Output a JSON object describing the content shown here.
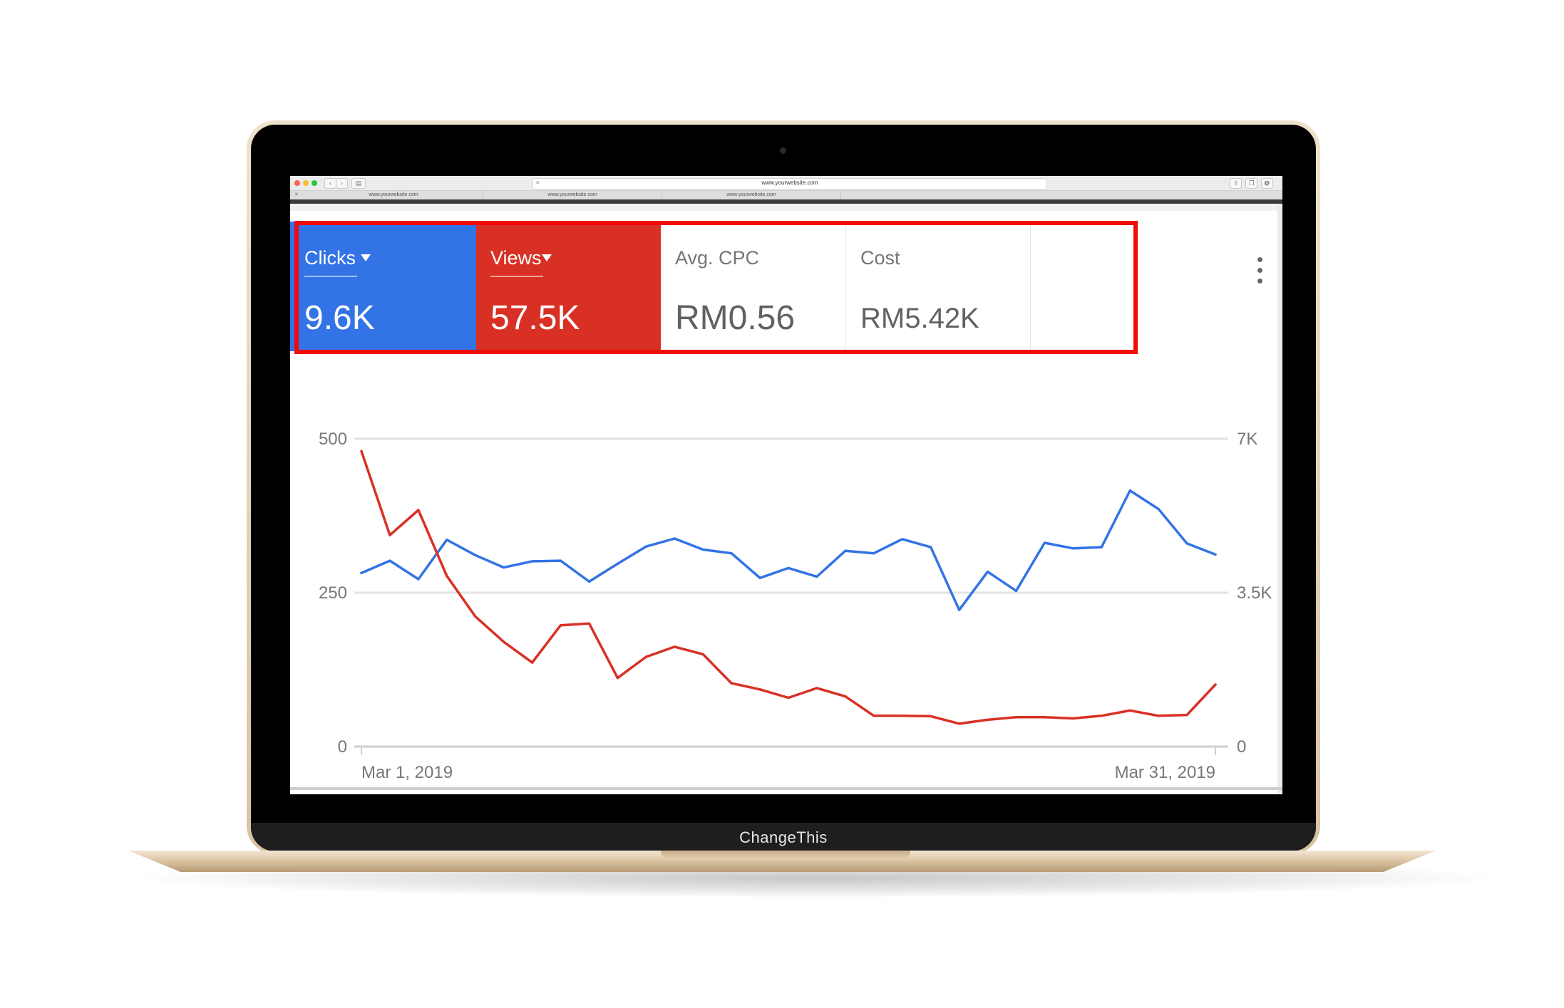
{
  "laptop": {
    "brand_label": "ChangeThis"
  },
  "browser": {
    "url": "www.yourwebsite.com",
    "tabs": [
      "www.yourwebsite.com",
      "www.yourwebsite.com",
      "www.yourwebsite.com"
    ]
  },
  "scorecards": [
    {
      "label": "Clicks",
      "value": "9.6K",
      "active": true,
      "color": "#3273e6"
    },
    {
      "label": "Views",
      "value": "57.5K",
      "active": true,
      "color": "#d93025"
    },
    {
      "label": "Avg. CPC",
      "value": "RM0.56",
      "active": false
    },
    {
      "label": "Cost",
      "value": "RM5.42K",
      "active": false
    }
  ],
  "colors": {
    "clicks": "#3273e6",
    "views": "#d93025",
    "highlight": "#f00a0a"
  },
  "chart_data": {
    "type": "line",
    "x_labels": [
      "Mar 1, 2019",
      "Mar 31, 2019"
    ],
    "x": [
      "Mar 1",
      "Mar 2",
      "Mar 3",
      "Mar 4",
      "Mar 5",
      "Mar 6",
      "Mar 7",
      "Mar 8",
      "Mar 9",
      "Mar 10",
      "Mar 11",
      "Mar 12",
      "Mar 13",
      "Mar 14",
      "Mar 15",
      "Mar 16",
      "Mar 17",
      "Mar 18",
      "Mar 19",
      "Mar 20",
      "Mar 21",
      "Mar 22",
      "Mar 23",
      "Mar 24",
      "Mar 25",
      "Mar 26",
      "Mar 27",
      "Mar 28",
      "Mar 29",
      "Mar 30",
      "Mar 31"
    ],
    "left_axis": {
      "ticks": [
        "0",
        "250",
        "500"
      ],
      "range": [
        0,
        500
      ]
    },
    "right_axis": {
      "ticks": [
        "0",
        "3.5K",
        "7K"
      ],
      "range": [
        0,
        7000
      ]
    },
    "grid": true,
    "series": [
      {
        "name": "Clicks",
        "axis": "left",
        "color": "#3273e6",
        "values": [
          282,
          302,
          272,
          336,
          311,
          291,
          301,
          302,
          268,
          297,
          325,
          338,
          320,
          314,
          274,
          290,
          276,
          318,
          314,
          337,
          324,
          222,
          284,
          253,
          331,
          322,
          324,
          416,
          386,
          330,
          312
        ]
      },
      {
        "name": "Views",
        "axis": "right",
        "color": "#d93025",
        "values": [
          6720,
          4810,
          5380,
          3880,
          2960,
          2380,
          1910,
          2760,
          2800,
          1560,
          2040,
          2270,
          2100,
          1440,
          1300,
          1110,
          1330,
          1140,
          700,
          700,
          690,
          520,
          610,
          670,
          670,
          640,
          700,
          820,
          700,
          720,
          1410
        ]
      }
    ]
  }
}
